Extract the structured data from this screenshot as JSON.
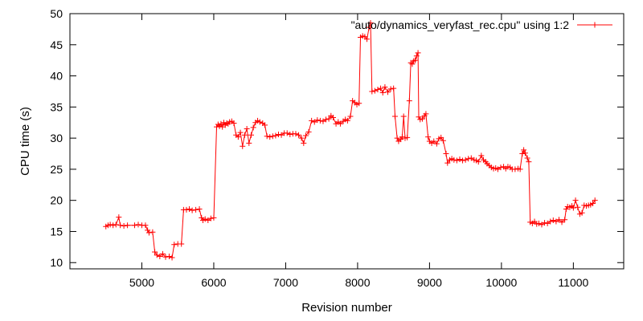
{
  "chart_data": {
    "type": "line",
    "title": "",
    "xlabel": "Revision number",
    "ylabel": "CPU time (s)",
    "xlim": [
      4000,
      11700
    ],
    "ylim": [
      9,
      50
    ],
    "x_ticks": [
      5000,
      6000,
      7000,
      8000,
      9000,
      10000,
      11000
    ],
    "y_ticks": [
      10,
      15,
      20,
      25,
      30,
      35,
      40,
      45,
      50
    ],
    "grid": false,
    "legend_position": "top-right",
    "colors": {
      "series": "#ff0000",
      "axes": "#000000",
      "background": "#ffffff"
    },
    "series": [
      {
        "name": "\"auto/dynamics_veryfast_rec.cpu\" using 1:2",
        "marker": "plus",
        "points": [
          [
            4500,
            15.8
          ],
          [
            4530,
            16.0
          ],
          [
            4560,
            16.1
          ],
          [
            4600,
            16.0
          ],
          [
            4640,
            16.1
          ],
          [
            4680,
            17.3
          ],
          [
            4700,
            16.0
          ],
          [
            4750,
            15.9
          ],
          [
            4800,
            16.0
          ],
          [
            4900,
            16.0
          ],
          [
            4950,
            16.1
          ],
          [
            5000,
            16.0
          ],
          [
            5050,
            16.0
          ],
          [
            5080,
            15.2
          ],
          [
            5100,
            14.8
          ],
          [
            5150,
            14.9
          ],
          [
            5180,
            11.7
          ],
          [
            5210,
            11.2
          ],
          [
            5250,
            11.0
          ],
          [
            5290,
            11.4
          ],
          [
            5330,
            10.9
          ],
          [
            5380,
            11.0
          ],
          [
            5420,
            10.8
          ],
          [
            5450,
            12.9
          ],
          [
            5500,
            13.0
          ],
          [
            5550,
            13.0
          ],
          [
            5580,
            18.5
          ],
          [
            5620,
            18.5
          ],
          [
            5660,
            18.6
          ],
          [
            5700,
            18.4
          ],
          [
            5750,
            18.5
          ],
          [
            5800,
            18.6
          ],
          [
            5830,
            17.2
          ],
          [
            5850,
            16.8
          ],
          [
            5880,
            17.0
          ],
          [
            5920,
            16.8
          ],
          [
            5960,
            17.1
          ],
          [
            6000,
            17.2
          ],
          [
            6040,
            31.8
          ],
          [
            6060,
            32.2
          ],
          [
            6080,
            31.9
          ],
          [
            6100,
            32.3
          ],
          [
            6120,
            31.8
          ],
          [
            6140,
            32.5
          ],
          [
            6160,
            32.1
          ],
          [
            6180,
            32.4
          ],
          [
            6200,
            32.3
          ],
          [
            6220,
            32.6
          ],
          [
            6250,
            32.7
          ],
          [
            6280,
            32.4
          ],
          [
            6310,
            30.5
          ],
          [
            6340,
            30.2
          ],
          [
            6370,
            30.9
          ],
          [
            6400,
            28.7
          ],
          [
            6430,
            30.5
          ],
          [
            6460,
            31.5
          ],
          [
            6490,
            29.2
          ],
          [
            6520,
            30.5
          ],
          [
            6550,
            31.7
          ],
          [
            6580,
            32.5
          ],
          [
            6610,
            32.8
          ],
          [
            6640,
            32.6
          ],
          [
            6680,
            32.4
          ],
          [
            6710,
            32.1
          ],
          [
            6740,
            30.3
          ],
          [
            6780,
            30.2
          ],
          [
            6820,
            30.3
          ],
          [
            6860,
            30.4
          ],
          [
            6900,
            30.6
          ],
          [
            6940,
            30.5
          ],
          [
            6980,
            30.8
          ],
          [
            7020,
            30.8
          ],
          [
            7060,
            30.6
          ],
          [
            7100,
            30.7
          ],
          [
            7140,
            30.7
          ],
          [
            7180,
            30.5
          ],
          [
            7220,
            30.0
          ],
          [
            7250,
            29.2
          ],
          [
            7280,
            30.4
          ],
          [
            7320,
            31.0
          ],
          [
            7360,
            32.8
          ],
          [
            7400,
            32.6
          ],
          [
            7440,
            32.9
          ],
          [
            7480,
            32.8
          ],
          [
            7520,
            32.7
          ],
          [
            7560,
            33.0
          ],
          [
            7600,
            33.1
          ],
          [
            7630,
            33.6
          ],
          [
            7660,
            33.3
          ],
          [
            7700,
            32.3
          ],
          [
            7730,
            32.6
          ],
          [
            7760,
            32.3
          ],
          [
            7800,
            32.7
          ],
          [
            7830,
            33.0
          ],
          [
            7860,
            32.8
          ],
          [
            7900,
            33.5
          ],
          [
            7930,
            36.0
          ],
          [
            7960,
            35.7
          ],
          [
            7990,
            35.4
          ],
          [
            8020,
            35.6
          ],
          [
            8040,
            46.2
          ],
          [
            8070,
            46.4
          ],
          [
            8100,
            46.3
          ],
          [
            8130,
            45.9
          ],
          [
            8160,
            47.8
          ],
          [
            8180,
            48.5
          ],
          [
            8200,
            37.5
          ],
          [
            8240,
            37.6
          ],
          [
            8280,
            37.8
          ],
          [
            8320,
            38.0
          ],
          [
            8350,
            37.3
          ],
          [
            8380,
            38.2
          ],
          [
            8420,
            37.4
          ],
          [
            8460,
            37.9
          ],
          [
            8500,
            38.0
          ],
          [
            8520,
            33.5
          ],
          [
            8550,
            30.0
          ],
          [
            8570,
            29.5
          ],
          [
            8600,
            29.8
          ],
          [
            8620,
            30.2
          ],
          [
            8640,
            33.5
          ],
          [
            8660,
            30.0
          ],
          [
            8690,
            30.1
          ],
          [
            8720,
            36.0
          ],
          [
            8740,
            42.1
          ],
          [
            8760,
            41.9
          ],
          [
            8780,
            42.4
          ],
          [
            8800,
            42.5
          ],
          [
            8820,
            43.2
          ],
          [
            8840,
            43.7
          ],
          [
            8850,
            33.4
          ],
          [
            8870,
            33.0
          ],
          [
            8900,
            33.1
          ],
          [
            8930,
            33.6
          ],
          [
            8950,
            33.9
          ],
          [
            8980,
            30.2
          ],
          [
            9000,
            29.5
          ],
          [
            9030,
            29.2
          ],
          [
            9060,
            29.5
          ],
          [
            9100,
            29.1
          ],
          [
            9130,
            29.9
          ],
          [
            9160,
            30.1
          ],
          [
            9190,
            29.6
          ],
          [
            9230,
            27.5
          ],
          [
            9250,
            26.0
          ],
          [
            9280,
            26.5
          ],
          [
            9310,
            26.7
          ],
          [
            9340,
            26.5
          ],
          [
            9380,
            26.4
          ],
          [
            9420,
            26.6
          ],
          [
            9460,
            26.4
          ],
          [
            9500,
            26.5
          ],
          [
            9540,
            26.7
          ],
          [
            9580,
            26.8
          ],
          [
            9620,
            26.5
          ],
          [
            9650,
            26.4
          ],
          [
            9680,
            26.2
          ],
          [
            9720,
            27.2
          ],
          [
            9750,
            26.5
          ],
          [
            9780,
            26.2
          ],
          [
            9800,
            25.9
          ],
          [
            9830,
            25.6
          ],
          [
            9860,
            25.3
          ],
          [
            9890,
            25.1
          ],
          [
            9920,
            25.2
          ],
          [
            9950,
            25.0
          ],
          [
            9990,
            25.3
          ],
          [
            10030,
            25.4
          ],
          [
            10060,
            25.1
          ],
          [
            10090,
            25.4
          ],
          [
            10120,
            25.3
          ],
          [
            10150,
            25.0
          ],
          [
            10190,
            25.0
          ],
          [
            10230,
            25.1
          ],
          [
            10260,
            25.0
          ],
          [
            10290,
            27.5
          ],
          [
            10310,
            28.1
          ],
          [
            10330,
            27.6
          ],
          [
            10360,
            26.8
          ],
          [
            10380,
            26.2
          ],
          [
            10400,
            16.5
          ],
          [
            10430,
            16.3
          ],
          [
            10460,
            16.6
          ],
          [
            10490,
            16.2
          ],
          [
            10520,
            16.3
          ],
          [
            10560,
            16.1
          ],
          [
            10600,
            16.4
          ],
          [
            10640,
            16.3
          ],
          [
            10680,
            16.6
          ],
          [
            10720,
            16.8
          ],
          [
            10760,
            16.6
          ],
          [
            10800,
            16.9
          ],
          [
            10840,
            16.5
          ],
          [
            10880,
            16.9
          ],
          [
            10900,
            18.6
          ],
          [
            10920,
            19.0
          ],
          [
            10950,
            18.9
          ],
          [
            10980,
            19.1
          ],
          [
            11000,
            18.8
          ],
          [
            11030,
            20.0
          ],
          [
            11060,
            18.9
          ],
          [
            11090,
            17.8
          ],
          [
            11120,
            18.0
          ],
          [
            11150,
            19.2
          ],
          [
            11180,
            19.1
          ],
          [
            11210,
            19.2
          ],
          [
            11240,
            19.3
          ],
          [
            11270,
            19.5
          ],
          [
            11300,
            20.0
          ]
        ]
      }
    ]
  }
}
